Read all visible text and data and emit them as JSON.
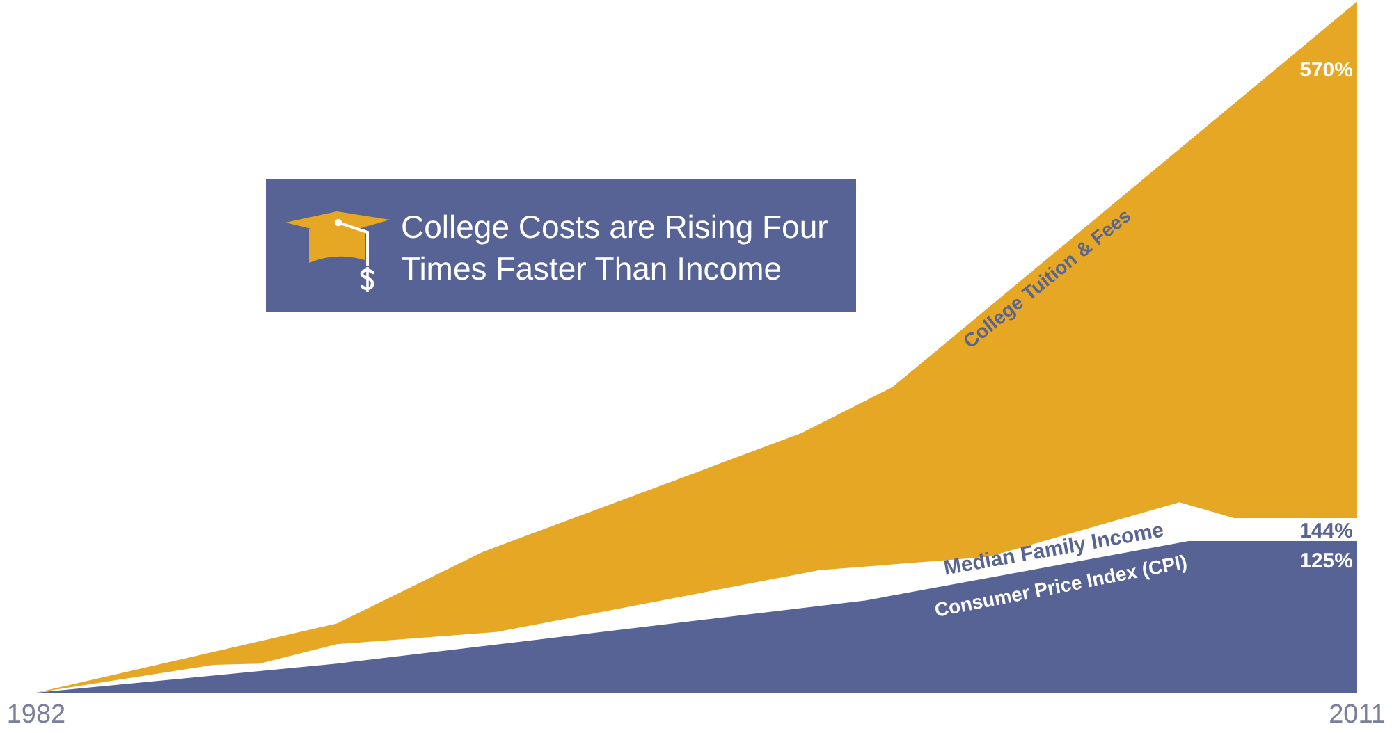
{
  "chart_data": {
    "type": "area",
    "title": "College Costs are Rising Four Times Faster Than Income",
    "xlim": [
      1982,
      2011
    ],
    "xticks": [
      1982,
      2011
    ],
    "ylim": [
      0,
      570
    ],
    "tick_labels": "x",
    "series": [
      {
        "name": "College Tuition & Fees",
        "color": "#e6a725",
        "x": [
          1982,
          1988.6,
          1991.8,
          1998.8,
          2000.8,
          2011
        ],
        "values": [
          0,
          57,
          116,
          214,
          252,
          570
        ],
        "value_labels": [
          null,
          null,
          null,
          null,
          null,
          "570%"
        ]
      },
      {
        "name": "Median Family Income",
        "color": "#ffffff",
        "x": [
          1982,
          1985.9,
          1986.9,
          1988.6,
          1992.1,
          1999.2,
          2002.9,
          2007.1,
          2008.3,
          2011
        ],
        "values": [
          0,
          23,
          24,
          40,
          50,
          101,
          112,
          157,
          144,
          144
        ],
        "value_labels": [
          null,
          null,
          null,
          null,
          null,
          null,
          null,
          null,
          null,
          "144%"
        ]
      },
      {
        "name": "Consumer Price Index (CPI)",
        "color": "#586395",
        "x": [
          1982,
          1988.6,
          2000.2,
          2007.3,
          2011
        ],
        "values": [
          0,
          24,
          76,
          125,
          125
        ],
        "value_labels": [
          null,
          null,
          null,
          null,
          "125%"
        ]
      }
    ]
  }
}
